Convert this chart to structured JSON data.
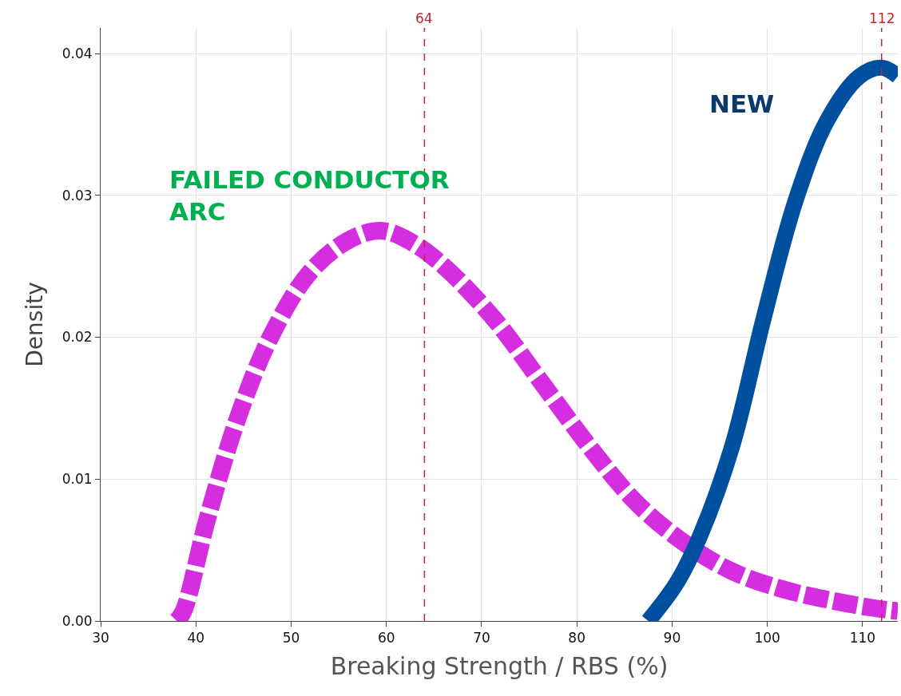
{
  "chart_data": {
    "type": "line",
    "xlabel": "Breaking Strength / RBS (%)",
    "ylabel": "Density",
    "xlim": [
      30,
      113.7
    ],
    "xticks": [
      30,
      40,
      50,
      60,
      70,
      80,
      90,
      100,
      110
    ],
    "ylim": [
      0,
      0.0418
    ],
    "yticks": [
      {
        "value": 0,
        "label": "0.00"
      },
      {
        "value": 0.01,
        "label": "0.01"
      },
      {
        "value": 0.02,
        "label": "0.02"
      },
      {
        "value": 0.03,
        "label": "0.03"
      },
      {
        "value": 0.04,
        "label": "0.04"
      }
    ],
    "grid": true,
    "series": [
      {
        "color": "#d42ee0",
        "line_style": "dashed",
        "x": [
          38.0,
          38.7,
          41.2,
          44.5,
          47.9,
          52.0,
          56.2,
          59.6,
          62.9,
          66.2,
          71.3,
          76.3,
          81.3,
          86.3,
          91.3,
          96.3,
          101.3,
          106.3,
          111.3,
          113.7
        ],
        "values": [
          0.0,
          0.0007,
          0.0072,
          0.0145,
          0.0201,
          0.0246,
          0.0269,
          0.0275,
          0.0266,
          0.0249,
          0.0213,
          0.0168,
          0.0123,
          0.0083,
          0.0055,
          0.0035,
          0.0023,
          0.0015,
          0.0009,
          0.0007
        ]
      },
      {
        "color": "#0050a0",
        "line_style": "solid",
        "x": [
          87.5,
          90.5,
          93.0,
          96.3,
          99.6,
          103.0,
          106.3,
          109.7,
          112.0,
          113.7
        ],
        "values": [
          0.0,
          0.0027,
          0.0061,
          0.0123,
          0.0213,
          0.0297,
          0.0353,
          0.0384,
          0.039,
          0.0384
        ]
      }
    ],
    "ref_lines": [
      {
        "axis": "x",
        "value": 64,
        "label": "64",
        "color": "#c0272d",
        "line_style": "dashed"
      },
      {
        "axis": "x",
        "value": 112,
        "label": "112",
        "color": "#c0272d",
        "line_style": "dashed"
      }
    ],
    "annotations": [
      "FAILED CONDUCTOR\nARC",
      "NEW"
    ]
  }
}
